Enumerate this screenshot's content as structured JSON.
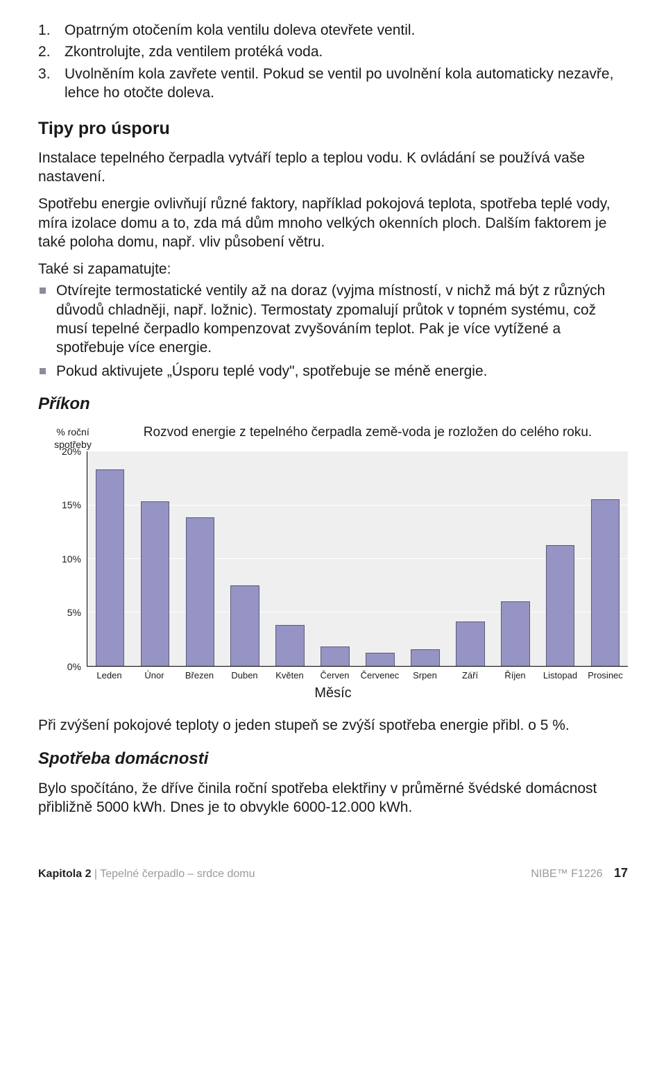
{
  "steps": [
    "Opatrným otočením kola ventilu doleva otevřete ventil.",
    "Zkontrolujte, zda ventilem protéká voda.",
    "Uvolněním kola zavřete ventil. Pokud se ventil po uvolnění kola automaticky nezavře, lehce ho otočte doleva."
  ],
  "tips": {
    "heading": "Tipy pro úsporu",
    "p1": "Instalace tepelného čerpadla vytváří teplo a teplou vodu. K ovládání se používá vaše nastavení.",
    "p2": "Spotřebu energie ovlivňují různé faktory, například pokojová teplota, spotřeba teplé vody, míra izolace domu a to, zda má dům mnoho velkých okenních ploch. Dalším faktorem je také poloha domu, např. vliv působení větru.",
    "p3": "Také si zapamatujte:",
    "bullets": [
      "Otvírejte termostatické ventily až na doraz (vyjma místností, v nichž má být z různých důvodů chladněji, např. ložnic). Termostaty zpomalují průtok v topném systému, což musí tepelné čerpadlo kompenzovat zvyšováním teplot. Pak je více vytížené a spotřebuje více energie.",
      "Pokud aktivujete „Úsporu teplé vody\", spotřebuje se méně energie."
    ]
  },
  "prikon_heading": "Příkon",
  "chart": {
    "ylabel0": "% roční",
    "ylabel1": "spotřeby",
    "caption": "Rozvod energie z tepelného čerpadla země-voda je rozložen do celého roku.",
    "type": "bar",
    "ymax": 20,
    "ytick_step": 5,
    "yticks": [
      "20%",
      "15%",
      "10%",
      "5%",
      "0%"
    ],
    "categories": [
      "Leden",
      "Únor",
      "Březen",
      "Duben",
      "Květen",
      "Červen",
      "Červenec",
      "Srpen",
      "Září",
      "Říjen",
      "Listopad",
      "Prosinec"
    ],
    "values": [
      18.3,
      15.3,
      13.8,
      7.5,
      3.8,
      1.8,
      1.2,
      1.5,
      4.1,
      6.0,
      11.2,
      15.5
    ],
    "bar_color": "#9694c4",
    "bar_border": "#5a5a7a",
    "plot_bg": "#efefef",
    "grid_color": "#ffffff",
    "xaxis_title": "Měsíc",
    "tick_fontsize": 14,
    "xlabel_fontsize": 13
  },
  "after_chart": "Při zvýšení pokojové teploty o jeden stupeň se zvýší spotřeba energie přibl. o 5 %.",
  "spotreba_heading": "Spotřeba domácnosti",
  "spotreba_body": "Bylo spočítáno, že dříve činila roční spotřeba elektřiny v průměrné švédské domácnost přibližně 5000 kWh. Dnes je to obvykle 6000-12.000 kWh.",
  "footer": {
    "chapter_bold": "Kapitola 2",
    "chapter_rest": " | Tepelné čerpadlo – srdce domu",
    "brand": "NIBE™ F1226",
    "page": "17"
  }
}
